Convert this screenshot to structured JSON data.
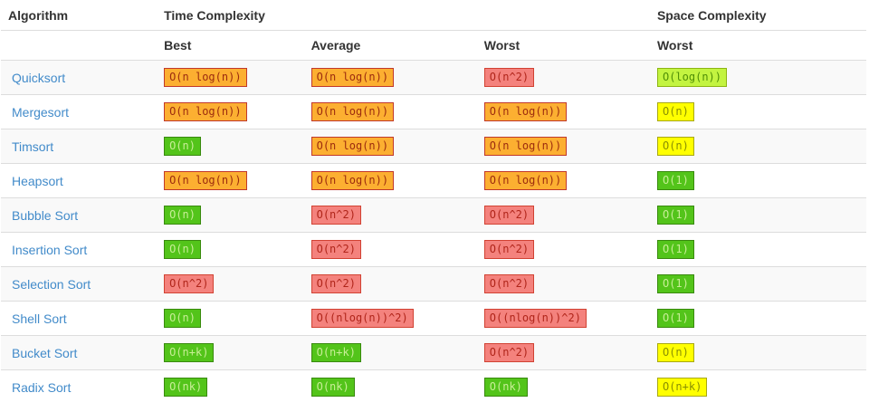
{
  "header": {
    "algorithm": "Algorithm",
    "time_complexity": "Time Complexity",
    "space_complexity": "Space Complexity",
    "best": "Best",
    "average": "Average",
    "worst_time": "Worst",
    "worst_space": "Worst"
  },
  "colors": {
    "link_blue": "#428bca",
    "stripe_gray": "#f9f9f9",
    "border_gray": "#dddddd",
    "badge_green": "#53c41a",
    "badge_yellowgreen": "#c3f440",
    "badge_yellow": "#ffff00",
    "badge_orange": "#fcaf31",
    "badge_red": "#f4827d"
  },
  "chart_data": {
    "type": "table",
    "column_groups": [
      {
        "label": "Time Complexity",
        "columns": [
          "Best",
          "Average",
          "Worst"
        ]
      },
      {
        "label": "Space Complexity",
        "columns": [
          "Worst"
        ]
      }
    ],
    "columns": [
      "Algorithm",
      "Best",
      "Average",
      "Worst",
      "Worst"
    ],
    "rows": [
      {
        "name": "Quicksort",
        "best": {
          "text": "O(n log(n))",
          "level": "orange"
        },
        "average": {
          "text": "O(n log(n))",
          "level": "orange"
        },
        "worst": {
          "text": "O(n^2)",
          "level": "red"
        },
        "space": {
          "text": "O(log(n))",
          "level": "yellowgreen"
        }
      },
      {
        "name": "Mergesort",
        "best": {
          "text": "O(n log(n))",
          "level": "orange"
        },
        "average": {
          "text": "O(n log(n))",
          "level": "orange"
        },
        "worst": {
          "text": "O(n log(n))",
          "level": "orange"
        },
        "space": {
          "text": "O(n)",
          "level": "yellow"
        }
      },
      {
        "name": "Timsort",
        "best": {
          "text": "O(n)",
          "level": "green"
        },
        "average": {
          "text": "O(n log(n))",
          "level": "orange"
        },
        "worst": {
          "text": "O(n log(n))",
          "level": "orange"
        },
        "space": {
          "text": "O(n)",
          "level": "yellow"
        }
      },
      {
        "name": "Heapsort",
        "best": {
          "text": "O(n log(n))",
          "level": "orange"
        },
        "average": {
          "text": "O(n log(n))",
          "level": "orange"
        },
        "worst": {
          "text": "O(n log(n))",
          "level": "orange"
        },
        "space": {
          "text": "O(1)",
          "level": "green"
        }
      },
      {
        "name": "Bubble Sort",
        "best": {
          "text": "O(n)",
          "level": "green"
        },
        "average": {
          "text": "O(n^2)",
          "level": "red"
        },
        "worst": {
          "text": "O(n^2)",
          "level": "red"
        },
        "space": {
          "text": "O(1)",
          "level": "green"
        }
      },
      {
        "name": "Insertion Sort",
        "best": {
          "text": "O(n)",
          "level": "green"
        },
        "average": {
          "text": "O(n^2)",
          "level": "red"
        },
        "worst": {
          "text": "O(n^2)",
          "level": "red"
        },
        "space": {
          "text": "O(1)",
          "level": "green"
        }
      },
      {
        "name": "Selection Sort",
        "best": {
          "text": "O(n^2)",
          "level": "red"
        },
        "average": {
          "text": "O(n^2)",
          "level": "red"
        },
        "worst": {
          "text": "O(n^2)",
          "level": "red"
        },
        "space": {
          "text": "O(1)",
          "level": "green"
        }
      },
      {
        "name": "Shell Sort",
        "best": {
          "text": "O(n)",
          "level": "green"
        },
        "average": {
          "text": "O((nlog(n))^2)",
          "level": "red"
        },
        "worst": {
          "text": "O((nlog(n))^2)",
          "level": "red"
        },
        "space": {
          "text": "O(1)",
          "level": "green"
        }
      },
      {
        "name": "Bucket Sort",
        "best": {
          "text": "O(n+k)",
          "level": "green"
        },
        "average": {
          "text": "O(n+k)",
          "level": "green"
        },
        "worst": {
          "text": "O(n^2)",
          "level": "red"
        },
        "space": {
          "text": "O(n)",
          "level": "yellow"
        }
      },
      {
        "name": "Radix Sort",
        "best": {
          "text": "O(nk)",
          "level": "green"
        },
        "average": {
          "text": "O(nk)",
          "level": "green"
        },
        "worst": {
          "text": "O(nk)",
          "level": "green"
        },
        "space": {
          "text": "O(n+k)",
          "level": "yellow"
        }
      }
    ]
  }
}
